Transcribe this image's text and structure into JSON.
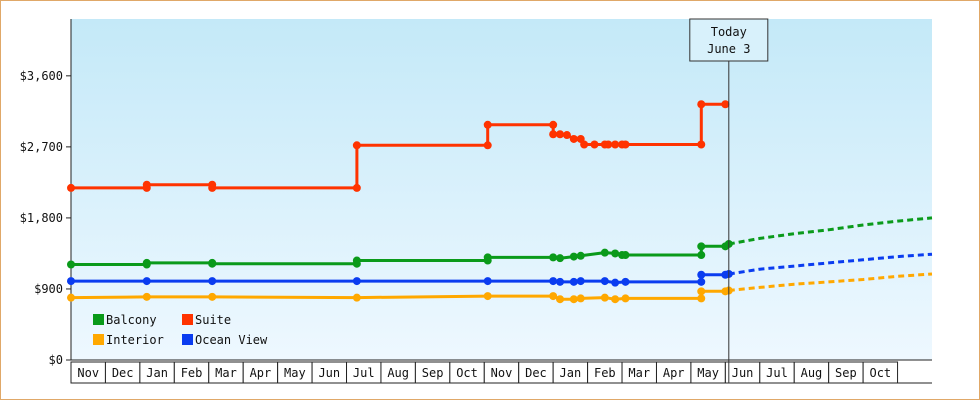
{
  "chart_data": {
    "type": "line",
    "title": "",
    "xlabel": "",
    "ylabel": "",
    "ylim": [
      0,
      4320
    ],
    "y_ticks": [
      {
        "value": 0,
        "label": "$0"
      },
      {
        "value": 900,
        "label": "$900"
      },
      {
        "value": 1800,
        "label": "$1,800"
      },
      {
        "value": 2700,
        "label": "$2,700"
      },
      {
        "value": 3600,
        "label": "$3,600"
      }
    ],
    "x_domain": [
      0,
      25
    ],
    "x_tick_labels": [
      "Nov",
      "Dec",
      "Jan",
      "Feb",
      "Mar",
      "Apr",
      "May",
      "Jun",
      "Jul",
      "Aug",
      "Sep",
      "Oct",
      "Nov",
      "Dec",
      "Jan",
      "Feb",
      "Mar",
      "Apr",
      "May",
      "Jun",
      "Jul",
      "Aug",
      "Sep",
      "Oct"
    ],
    "today_marker": {
      "x": 19.1,
      "line1": "Today",
      "line2": "June 3"
    },
    "grid": false,
    "legend_position": "bottom-left",
    "background_gradient": {
      "top": "#c4e9f8",
      "bottom": "#eef8ff"
    },
    "series": [
      {
        "name": "Suite",
        "color": "#ff3300",
        "points": [
          [
            0.0,
            2180
          ],
          [
            2.2,
            2180
          ],
          [
            2.2,
            2220
          ],
          [
            4.1,
            2220
          ],
          [
            4.1,
            2180
          ],
          [
            8.3,
            2180
          ],
          [
            8.3,
            2720
          ],
          [
            12.1,
            2720
          ],
          [
            12.1,
            2980
          ],
          [
            14.0,
            2980
          ],
          [
            14.0,
            2860
          ],
          [
            14.2,
            2860
          ],
          [
            14.4,
            2850
          ],
          [
            14.6,
            2800
          ],
          [
            14.8,
            2800
          ],
          [
            14.9,
            2730
          ],
          [
            15.2,
            2730
          ],
          [
            15.5,
            2730
          ],
          [
            15.6,
            2730
          ],
          [
            15.8,
            2730
          ],
          [
            16.0,
            2730
          ],
          [
            16.1,
            2730
          ],
          [
            18.3,
            2730
          ],
          [
            18.3,
            3240
          ],
          [
            19.0,
            3240
          ]
        ],
        "forecast": []
      },
      {
        "name": "Balcony",
        "color": "#0a9a1a",
        "points": [
          [
            0.0,
            1210
          ],
          [
            2.2,
            1210
          ],
          [
            2.2,
            1230
          ],
          [
            4.1,
            1230
          ],
          [
            4.1,
            1220
          ],
          [
            8.3,
            1220
          ],
          [
            8.3,
            1260
          ],
          [
            12.1,
            1260
          ],
          [
            12.1,
            1300
          ],
          [
            14.0,
            1300
          ],
          [
            14.2,
            1290
          ],
          [
            14.6,
            1310
          ],
          [
            14.8,
            1320
          ],
          [
            15.5,
            1360
          ],
          [
            15.8,
            1350
          ],
          [
            16.0,
            1330
          ],
          [
            16.1,
            1330
          ],
          [
            18.3,
            1330
          ],
          [
            18.3,
            1440
          ],
          [
            19.0,
            1440
          ],
          [
            19.1,
            1470
          ]
        ],
        "forecast": [
          [
            19.1,
            1470
          ],
          [
            20.0,
            1540
          ],
          [
            21.0,
            1600
          ],
          [
            22.0,
            1650
          ],
          [
            23.0,
            1710
          ],
          [
            24.0,
            1760
          ],
          [
            25.0,
            1800
          ]
        ]
      },
      {
        "name": "Ocean View",
        "color": "#0a3cf0",
        "points": [
          [
            0.0,
            1000
          ],
          [
            2.2,
            1000
          ],
          [
            4.1,
            1000
          ],
          [
            8.3,
            1000
          ],
          [
            12.1,
            1000
          ],
          [
            14.0,
            1000
          ],
          [
            14.2,
            990
          ],
          [
            14.6,
            990
          ],
          [
            14.8,
            1000
          ],
          [
            15.5,
            1000
          ],
          [
            15.8,
            980
          ],
          [
            16.1,
            990
          ],
          [
            18.3,
            990
          ],
          [
            18.3,
            1080
          ],
          [
            19.0,
            1080
          ],
          [
            19.1,
            1090
          ]
        ],
        "forecast": [
          [
            19.1,
            1090
          ],
          [
            20.0,
            1150
          ],
          [
            21.0,
            1190
          ],
          [
            22.0,
            1230
          ],
          [
            23.0,
            1270
          ],
          [
            24.0,
            1310
          ],
          [
            25.0,
            1340
          ]
        ]
      },
      {
        "name": "Interior",
        "color": "#ffa800",
        "points": [
          [
            0.0,
            790
          ],
          [
            2.2,
            800
          ],
          [
            4.1,
            800
          ],
          [
            8.3,
            790
          ],
          [
            12.1,
            810
          ],
          [
            14.0,
            810
          ],
          [
            14.2,
            770
          ],
          [
            14.6,
            770
          ],
          [
            14.8,
            780
          ],
          [
            15.5,
            790
          ],
          [
            15.8,
            770
          ],
          [
            16.1,
            780
          ],
          [
            18.3,
            780
          ],
          [
            18.3,
            870
          ],
          [
            19.0,
            870
          ],
          [
            19.1,
            880
          ]
        ],
        "forecast": [
          [
            19.1,
            880
          ],
          [
            20.0,
            920
          ],
          [
            21.0,
            960
          ],
          [
            22.0,
            990
          ],
          [
            23.0,
            1020
          ],
          [
            24.0,
            1060
          ],
          [
            25.0,
            1090
          ]
        ]
      }
    ],
    "legend": [
      {
        "name": "Balcony",
        "color": "#0a9a1a"
      },
      {
        "name": "Suite",
        "color": "#ff3300"
      },
      {
        "name": "Interior",
        "color": "#ffa800"
      },
      {
        "name": "Ocean View",
        "color": "#0a3cf0"
      }
    ]
  }
}
